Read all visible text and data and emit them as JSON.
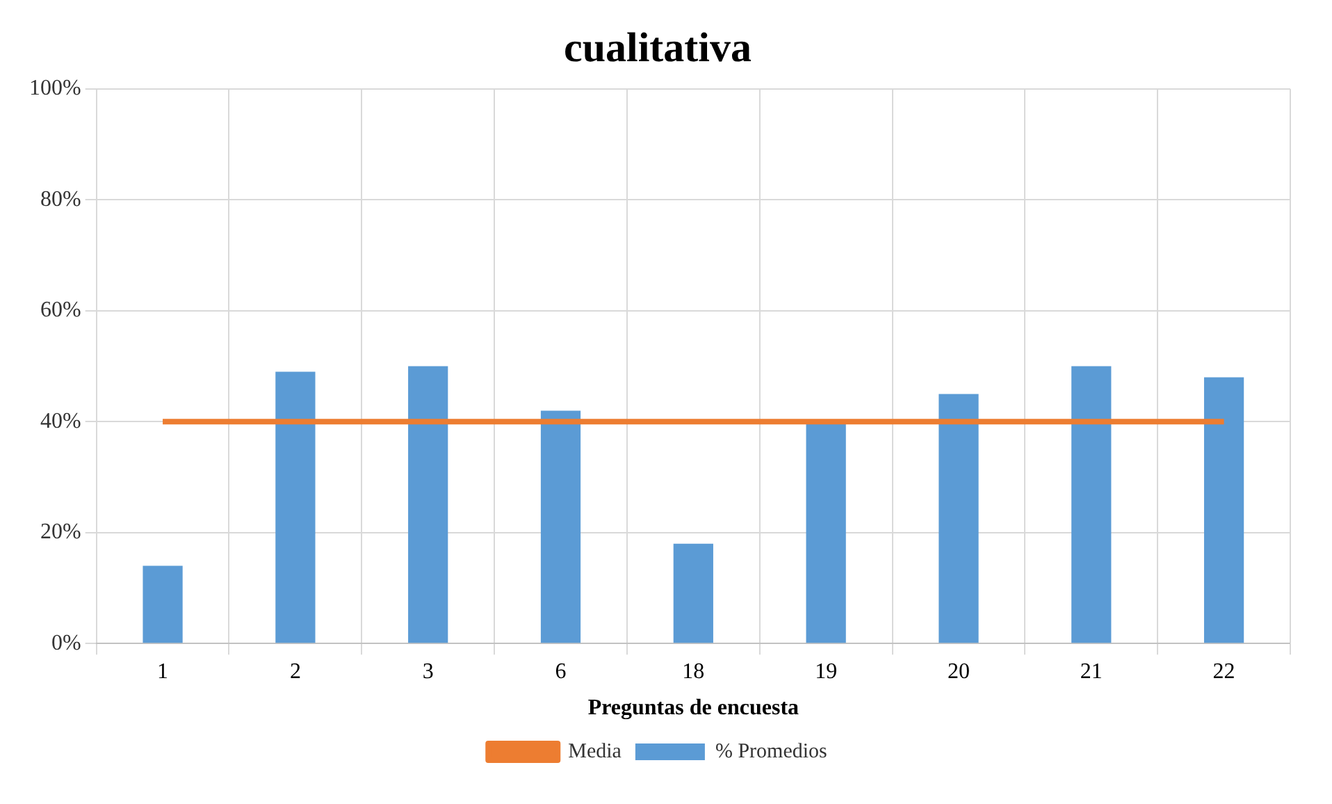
{
  "chart_data": {
    "type": "bar",
    "title": "cualitativa",
    "xlabel": "Preguntas de encuesta",
    "categories": [
      "1",
      "2",
      "3",
      "6",
      "18",
      "19",
      "20",
      "21",
      "22"
    ],
    "series": [
      {
        "name": "% Promedios",
        "color": "#5b9bd5",
        "values": [
          14,
          49,
          50,
          42,
          18,
          40,
          45,
          50,
          48
        ]
      },
      {
        "name": "Media",
        "type": "line",
        "color": "#ed7d31",
        "values": [
          40,
          40,
          40,
          40,
          40,
          40,
          40,
          40,
          40
        ]
      }
    ],
    "ylim": [
      0,
      100
    ],
    "yticks": [
      {
        "value": 0,
        "label": "0%"
      },
      {
        "value": 20,
        "label": "20%"
      },
      {
        "value": 40,
        "label": "40%"
      },
      {
        "value": 60,
        "label": "60%"
      },
      {
        "value": 80,
        "label": "80%"
      },
      {
        "value": 100,
        "label": "100%"
      }
    ],
    "grid": true,
    "legend": "bottom",
    "marker": "none"
  }
}
